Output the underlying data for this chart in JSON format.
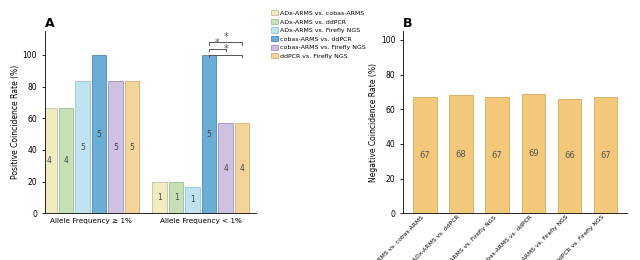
{
  "panelA_title": "A",
  "panelB_title": "B",
  "panelA_ylabel": "Positive Coincidence Rate (%)",
  "panelB_ylabel": "Negative Coincidence Rate (%)",
  "group_labels": [
    "Allele Frequency ≥ 1%",
    "Allele Frequency < 1%"
  ],
  "legend_labels": [
    "ADx-ARMS vs. cobas-ARMS",
    "ADx-ARMS vs. ddPCR",
    "ADx-ARMS vs. Firefly NGS",
    "cobas-ARMS vs. ddPCR",
    "cobas-ARMS vs. Firefly NGS",
    "ddPCR vs. Firefly NGS"
  ],
  "bar_colors_A": [
    "#f0ecc0",
    "#c5e0b4",
    "#bfe3ef",
    "#6aaed6",
    "#cec0e0",
    "#f4d49a"
  ],
  "bar_edgecolors_A": [
    "#b8b490",
    "#88b888",
    "#88c0d0",
    "#3878b0",
    "#9878b8",
    "#c8a058"
  ],
  "group1_values": [
    66.7,
    66.7,
    83.3,
    100.0,
    83.3,
    83.3
  ],
  "group2_values": [
    20.0,
    20.0,
    16.7,
    100.0,
    57.1,
    57.1
  ],
  "group1_labels": [
    "4",
    "4",
    "5",
    "5",
    "5",
    "5"
  ],
  "group2_labels": [
    "1",
    "1",
    "1",
    "5",
    "4",
    "4"
  ],
  "panelB_values": [
    67,
    68,
    67,
    69,
    66,
    67
  ],
  "panelB_bar_color": "#f4c87a",
  "panelB_bar_edgecolor": "#c8a050",
  "panelB_xlabels": [
    "ADx-ARMS vs. cobas-ARMS",
    "ADx-ARMS vs. ddPCR",
    "ADx-ARMS vs. Firefly NGS",
    "cobas-ARMS vs. ddPCR",
    "cobas-ARMS vs. Firefly NGS",
    "ddPCR vs. Firefly NGS"
  ],
  "panelB_ylim": [
    0,
    105
  ],
  "panelA_ylim": [
    0,
    115
  ],
  "panelA_yticks": [
    0,
    20,
    40,
    60,
    80,
    100
  ],
  "panelB_yticks": [
    0,
    20,
    40,
    60,
    80,
    100
  ]
}
